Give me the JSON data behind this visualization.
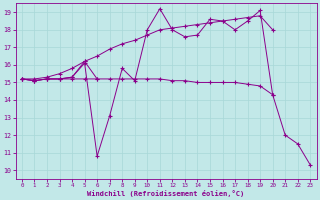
{
  "xlabel": "Windchill (Refroidissement éolien,°C)",
  "xlim": [
    -0.5,
    23.5
  ],
  "ylim": [
    9.5,
    19.5
  ],
  "yticks": [
    10,
    11,
    12,
    13,
    14,
    15,
    16,
    17,
    18,
    19
  ],
  "xticks": [
    0,
    1,
    2,
    3,
    4,
    5,
    6,
    7,
    8,
    9,
    10,
    11,
    12,
    13,
    14,
    15,
    16,
    17,
    18,
    19,
    20,
    21,
    22,
    23
  ],
  "bg_color": "#c2e8e8",
  "grid_color": "#a8d8d8",
  "line_color": "#8b008b",
  "series": [
    {
      "x": [
        0,
        1,
        2,
        3,
        4,
        5,
        6
      ],
      "y": [
        15.2,
        15.1,
        15.2,
        15.2,
        15.3,
        16.2,
        15.2
      ]
    },
    {
      "x": [
        0,
        1,
        2,
        3,
        4,
        5,
        6,
        7,
        8,
        9,
        10,
        11,
        12,
        13,
        14,
        15,
        16,
        17,
        18,
        19,
        20,
        21,
        22,
        23
      ],
      "y": [
        15.2,
        15.1,
        15.2,
        15.2,
        15.3,
        16.1,
        10.8,
        13.1,
        15.8,
        15.1,
        18.0,
        19.2,
        18.0,
        17.6,
        17.7,
        18.6,
        18.5,
        18.0,
        18.5,
        19.1,
        14.3,
        12.0,
        11.5,
        10.3
      ]
    },
    {
      "x": [
        0,
        1,
        2,
        3,
        4,
        5,
        6,
        7,
        8,
        9,
        10,
        11,
        12,
        13,
        14,
        15,
        16,
        17,
        18,
        19,
        20
      ],
      "y": [
        15.2,
        15.1,
        15.2,
        15.2,
        15.2,
        15.2,
        15.2,
        15.2,
        15.2,
        15.2,
        15.2,
        15.2,
        15.1,
        15.1,
        15.0,
        15.0,
        15.0,
        15.0,
        14.9,
        14.8,
        14.3
      ]
    },
    {
      "x": [
        0,
        1,
        2,
        3,
        4,
        5,
        6,
        7,
        8,
        9,
        10,
        11,
        12,
        13,
        14,
        15,
        16,
        17,
        18,
        19,
        20
      ],
      "y": [
        15.2,
        15.2,
        15.3,
        15.5,
        15.8,
        16.2,
        16.5,
        16.9,
        17.2,
        17.4,
        17.7,
        18.0,
        18.1,
        18.2,
        18.3,
        18.4,
        18.5,
        18.6,
        18.7,
        18.8,
        18.0
      ]
    }
  ]
}
